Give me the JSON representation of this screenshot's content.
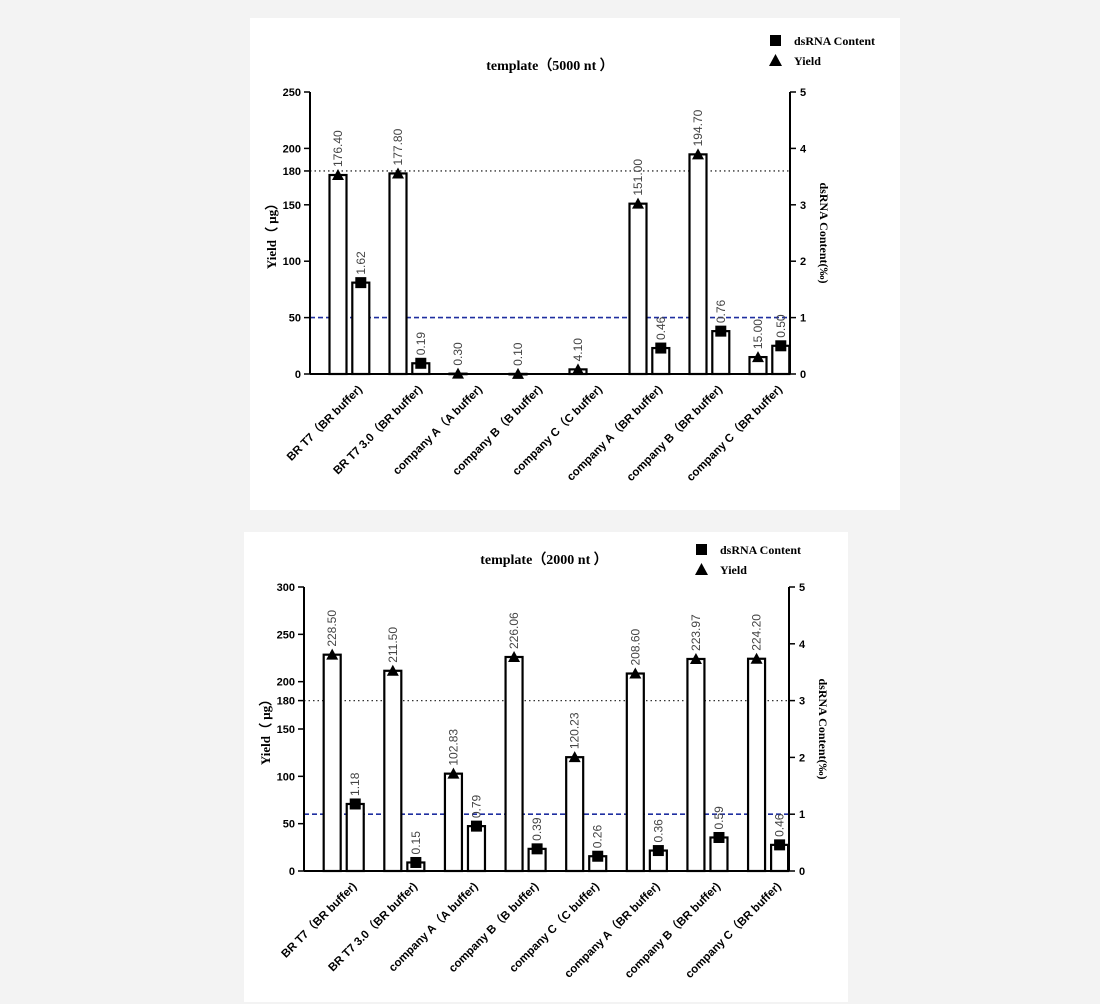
{
  "chart_data": [
    {
      "type": "bar",
      "title": "template（5000 nt ）",
      "ylabel": "Yield（ μg）",
      "y2label": "dsRNA Content(‰)",
      "ylim": [
        0,
        250
      ],
      "y2lim": [
        0,
        5
      ],
      "yticks": [
        0,
        50,
        100,
        150,
        180,
        200,
        250
      ],
      "y2ticks": [
        0,
        1,
        2,
        3,
        4,
        5
      ],
      "reference_lines": [
        {
          "axis": "left",
          "value": 180,
          "style": "dotted",
          "color": "#333333"
        },
        {
          "axis": "right",
          "value": 1,
          "style": "dashed",
          "color": "#1f2fa0"
        }
      ],
      "categories": [
        "BR T7（BR buffer)",
        "BR T7 3.0（BR buffer)",
        "company A（A buffer)",
        "company B（B buffer)",
        "company C（C buffer)",
        "company A（BR buffer)",
        "company B（BR buffer)",
        "company C（BR buffer)"
      ],
      "series": [
        {
          "name": "Yield",
          "axis": "left",
          "marker": "triangle",
          "values": [
            176.4,
            177.8,
            0.3,
            0.1,
            4.1,
            151.0,
            194.7,
            15.0
          ],
          "labels": [
            "176.40",
            "177.80",
            "0.30",
            "0.10",
            "4.10",
            "151.00",
            "194.70",
            "15.00"
          ]
        },
        {
          "name": "dsRNA Content",
          "axis": "right",
          "marker": "square",
          "values": [
            1.62,
            0.19,
            null,
            null,
            null,
            0.46,
            0.76,
            0.5
          ],
          "labels": [
            "1.62",
            "0.19",
            "",
            "",
            "",
            "0.46",
            "0.76",
            "0.50"
          ]
        }
      ],
      "legend": [
        {
          "label": "dsRNA Content",
          "marker": "square"
        },
        {
          "label": "Yield",
          "marker": "triangle"
        }
      ],
      "legend_position": "top-right"
    },
    {
      "type": "bar",
      "title": "template（2000 nt ）",
      "ylabel": "Yield（ μg）",
      "y2label": "dsRNA Content(‰)",
      "ylim": [
        0,
        300
      ],
      "y2lim": [
        0,
        5
      ],
      "yticks": [
        0,
        50,
        100,
        150,
        180,
        200,
        250,
        300
      ],
      "y2ticks": [
        0,
        1,
        2,
        3,
        4,
        5
      ],
      "reference_lines": [
        {
          "axis": "left",
          "value": 180,
          "style": "dotted",
          "color": "#333333"
        },
        {
          "axis": "right",
          "value": 1,
          "style": "dashed",
          "color": "#1f2fa0"
        }
      ],
      "categories": [
        "BR T7（BR buffer)",
        "BR T7 3.0（BR buffer)",
        "company A（A buffer)",
        "company B（B buffer)",
        "company C（C buffer)",
        "company A（BR buffer)",
        "company B（BR buffer)",
        "company C（BR buffer)"
      ],
      "series": [
        {
          "name": "Yield",
          "axis": "left",
          "marker": "triangle",
          "values": [
            228.5,
            211.5,
            102.83,
            226.06,
            120.23,
            208.6,
            223.97,
            224.2
          ],
          "labels": [
            "228.50",
            "211.50",
            "102.83",
            "226.06",
            "120.23",
            "208.60",
            "223.97",
            "224.20"
          ]
        },
        {
          "name": "dsRNA Content",
          "axis": "right",
          "marker": "square",
          "values": [
            1.18,
            0.15,
            0.79,
            0.39,
            0.26,
            0.36,
            0.59,
            0.46
          ],
          "labels": [
            "1.18",
            "0.15",
            "0.79",
            "0.39",
            "0.26",
            "0.36",
            "0.59",
            "0.46"
          ]
        }
      ],
      "legend": [
        {
          "label": "dsRNA Content",
          "marker": "square"
        },
        {
          "label": "Yield",
          "marker": "triangle"
        }
      ],
      "legend_position": "top-right"
    }
  ]
}
